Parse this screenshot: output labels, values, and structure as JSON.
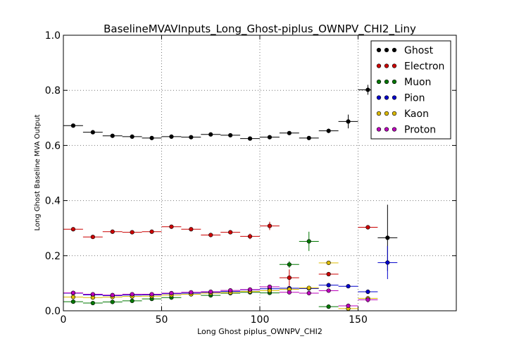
{
  "chart_data": {
    "type": "scatter",
    "title": "BaselineMVAVInputs_Long_Ghost-piplus_OWNPV_CHI2_Liny",
    "xlabel": "Long Ghost piplus_OWNPV_CHI2",
    "ylabel": "Long Ghost Baseline MVA Output",
    "xlim": [
      0,
      200
    ],
    "ylim": [
      0,
      1.0
    ],
    "x_ticks": [
      0,
      50,
      100,
      150
    ],
    "y_ticks": [
      0.0,
      0.2,
      0.4,
      0.6,
      0.8,
      1.0
    ],
    "y_tick_labels": [
      "0.0",
      "0.2",
      "0.4",
      "0.6",
      "0.8",
      "1.0"
    ],
    "grid": true,
    "grid_style": "dotted",
    "legend_position": "top-right",
    "bin_half_width": 5,
    "series": [
      {
        "name": "Ghost",
        "color": "#000000",
        "x": [
          5,
          15,
          25,
          35,
          45,
          55,
          65,
          75,
          85,
          95,
          105,
          115,
          125,
          135,
          145,
          155,
          165
        ],
        "y": [
          0.672,
          0.648,
          0.635,
          0.632,
          0.627,
          0.632,
          0.63,
          0.64,
          0.637,
          0.625,
          0.63,
          0.645,
          0.627,
          0.653,
          0.687,
          0.802,
          0.265
        ],
        "yerr": [
          0.004,
          0.004,
          0.004,
          0.004,
          0.004,
          0.004,
          0.004,
          0.004,
          0.004,
          0.004,
          0.005,
          0.006,
          0.006,
          0.008,
          0.025,
          0.018,
          0.12
        ]
      },
      {
        "name": "Electron",
        "color": "#cc0000",
        "x": [
          5,
          15,
          25,
          35,
          45,
          55,
          65,
          75,
          85,
          95,
          105,
          115,
          135,
          155
        ],
        "y": [
          0.296,
          0.268,
          0.287,
          0.285,
          0.287,
          0.305,
          0.296,
          0.275,
          0.285,
          0.27,
          0.308,
          0.12,
          0.133,
          0.303
        ],
        "yerr": [
          0.004,
          0.004,
          0.004,
          0.004,
          0.004,
          0.005,
          0.005,
          0.005,
          0.006,
          0.01,
          0.015,
          0.03,
          0.006,
          0.005
        ]
      },
      {
        "name": "Muon",
        "color": "#007700",
        "x": [
          5,
          15,
          25,
          35,
          45,
          55,
          65,
          75,
          85,
          95,
          105,
          115,
          125,
          135
        ],
        "y": [
          0.033,
          0.028,
          0.032,
          0.036,
          0.043,
          0.048,
          0.06,
          0.056,
          0.064,
          0.067,
          0.065,
          0.168,
          0.252,
          0.015
        ],
        "yerr": [
          0.003,
          0.003,
          0.003,
          0.003,
          0.003,
          0.004,
          0.004,
          0.004,
          0.004,
          0.005,
          0.006,
          0.012,
          0.035,
          0.005
        ]
      },
      {
        "name": "Pion",
        "color": "#0000cc",
        "x": [
          5,
          15,
          25,
          35,
          45,
          55,
          65,
          75,
          85,
          95,
          105,
          115,
          125,
          135,
          145,
          155,
          165
        ],
        "y": [
          0.064,
          0.058,
          0.055,
          0.057,
          0.058,
          0.062,
          0.064,
          0.067,
          0.07,
          0.076,
          0.08,
          0.082,
          0.081,
          0.093,
          0.089,
          0.069,
          0.175
        ],
        "yerr": [
          0.002,
          0.002,
          0.002,
          0.002,
          0.002,
          0.002,
          0.002,
          0.002,
          0.002,
          0.003,
          0.003,
          0.004,
          0.004,
          0.005,
          0.005,
          0.008,
          0.06
        ]
      },
      {
        "name": "Kaon",
        "color": "#ddbb00",
        "x": [
          5,
          15,
          25,
          35,
          45,
          55,
          65,
          75,
          85,
          95,
          105,
          115,
          125,
          135,
          145,
          155
        ],
        "y": [
          0.05,
          0.048,
          0.05,
          0.052,
          0.053,
          0.057,
          0.06,
          0.064,
          0.066,
          0.07,
          0.073,
          0.078,
          0.083,
          0.174,
          0.008,
          0.045
        ],
        "yerr": [
          0.002,
          0.002,
          0.002,
          0.002,
          0.002,
          0.002,
          0.002,
          0.002,
          0.002,
          0.003,
          0.003,
          0.004,
          0.004,
          0.006,
          0.005,
          0.008
        ]
      },
      {
        "name": "Proton",
        "color": "#bb00bb",
        "x": [
          5,
          15,
          25,
          35,
          45,
          55,
          65,
          75,
          85,
          95,
          105,
          115,
          125,
          135,
          145,
          155
        ],
        "y": [
          0.065,
          0.06,
          0.057,
          0.06,
          0.06,
          0.064,
          0.067,
          0.069,
          0.074,
          0.077,
          0.087,
          0.067,
          0.064,
          0.073,
          0.018,
          0.04
        ],
        "yerr": [
          0.002,
          0.002,
          0.002,
          0.002,
          0.002,
          0.002,
          0.002,
          0.002,
          0.002,
          0.003,
          0.004,
          0.004,
          0.005,
          0.006,
          0.008,
          0.01
        ]
      }
    ]
  }
}
